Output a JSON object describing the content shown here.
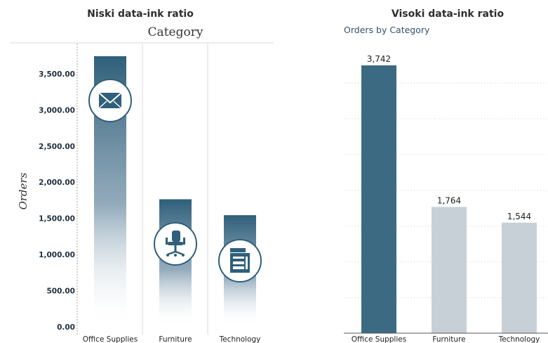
{
  "chart_data": [
    {
      "type": "bar",
      "title": "Niski data-ink ratio",
      "subtitle": "Category",
      "ylabel": "Orders",
      "xlabel": "",
      "categories": [
        "Office Supplies",
        "Furniture",
        "Technology"
      ],
      "values": [
        3742,
        1764,
        1544
      ],
      "ylim": [
        0,
        3742
      ],
      "yticks": [
        "0.00",
        "500.00",
        "1,000.00",
        "1,500.00",
        "2,000.00",
        "2,500.00",
        "3,000.00",
        "3,500.00"
      ],
      "ytick_values": [
        0,
        500,
        1000,
        1500,
        2000,
        2500,
        3000,
        3500
      ],
      "grid": "vertical",
      "bar_style": "gradient",
      "bar_color": "#2f5f7a",
      "icons": [
        "envelope-icon",
        "office-chair-icon",
        "copier-icon"
      ]
    },
    {
      "type": "bar",
      "title": "Visoki data-ink ratio",
      "subtitle": "Orders by Category",
      "xlabel": "",
      "ylabel": "",
      "categories": [
        "Office Supplies",
        "Furniture",
        "Technology"
      ],
      "values": [
        3742,
        1764,
        1544
      ],
      "data_labels": [
        "3,742",
        "1,764",
        "1,544"
      ],
      "ylim": [
        0,
        3742
      ],
      "grid": "horizontal-dotted",
      "highlight_color": "#3d6a83",
      "muted_color": "#c8d0d7"
    }
  ]
}
